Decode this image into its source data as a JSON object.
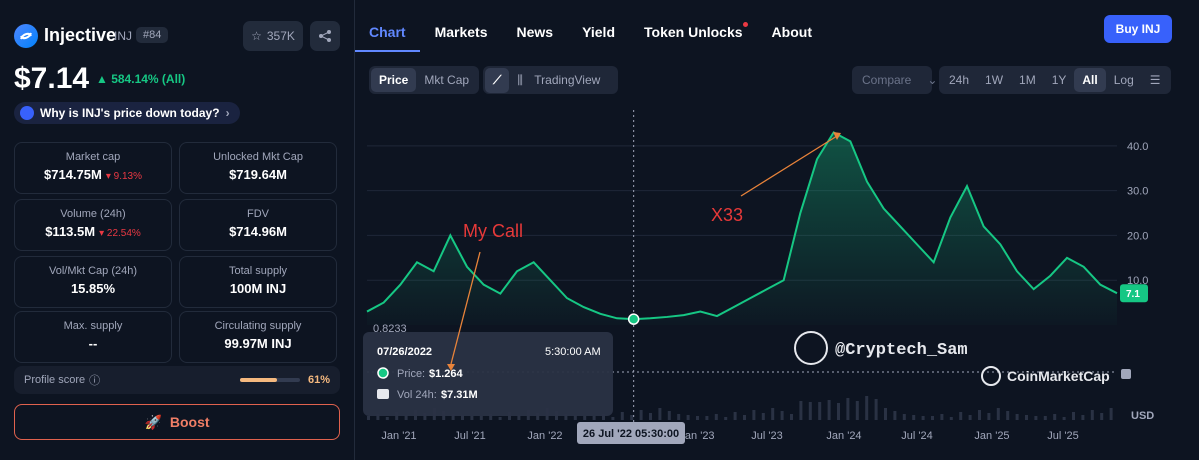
{
  "coin": {
    "name": "Injective",
    "symbol": "INJ",
    "rank": "#84",
    "watchlist_count": "357K",
    "price": "$7.14",
    "change": "▲ 584.14% (All)",
    "why_label": "Why is INJ's price down today?"
  },
  "stats": [
    {
      "label": "Market cap",
      "value": "$714.75M",
      "sub": "▾ 9.13%"
    },
    {
      "label": "Unlocked Mkt Cap",
      "value": "$719.64M",
      "sub": ""
    },
    {
      "label": "Volume (24h)",
      "value": "$113.5M",
      "sub": "▾ 22.54%"
    },
    {
      "label": "FDV",
      "value": "$714.96M",
      "sub": ""
    },
    {
      "label": "Vol/Mkt Cap (24h)",
      "value": "15.85%",
      "sub": ""
    },
    {
      "label": "Total supply",
      "value": "100M INJ",
      "sub": ""
    },
    {
      "label": "Max. supply",
      "value": "--",
      "sub": ""
    },
    {
      "label": "Circulating supply",
      "value": "99.97M INJ",
      "sub": ""
    }
  ],
  "profile": {
    "label": "Profile score",
    "value": "61%",
    "progress": 0.61
  },
  "boost_label": "Boost",
  "tabs": [
    "Chart",
    "Markets",
    "News",
    "Yield",
    "Token Unlocks",
    "About"
  ],
  "buy_label": "Buy INJ",
  "controls": {
    "price": "Price",
    "mktcap": "Mkt Cap",
    "tradingview": "TradingView",
    "compare": "Compare",
    "ranges": [
      "24h",
      "1W",
      "1M",
      "1Y",
      "All"
    ],
    "log": "Log"
  },
  "tooltip": {
    "date": "07/26/2022",
    "time": "5:30:00 AM",
    "price_label": "Price:",
    "price": "$1.264",
    "vol_label": "Vol 24h:",
    "vol": "$7.31M"
  },
  "annotations": {
    "my_call": "My Call",
    "x33": "X33",
    "watermark": "@Cryptech_Sam",
    "cmc": "CoinMarketCap"
  },
  "chart_data": {
    "type": "area",
    "x_ticks": [
      "Jan '21",
      "Jul '21",
      "Jan '22",
      "Jan '23",
      "Jul '23",
      "Jan '24",
      "Jul '24",
      "Jan '25",
      "Jul '25"
    ],
    "crosshair_label": "26 Jul '22 05:30:00",
    "y_ticks": [
      "40.0",
      "30.0",
      "20.0",
      "10.0"
    ],
    "y_unit": "USD",
    "low_label": "0.8233",
    "current_label": "7.1",
    "ylim": [
      0,
      48
    ],
    "series": [
      {
        "values": [
          3,
          5,
          9,
          14,
          12,
          20,
          13,
          9,
          7,
          12,
          14,
          10,
          6,
          4,
          2.5,
          1.5,
          1.3,
          1.5,
          1.8,
          2.2,
          3,
          2,
          4,
          6,
          8,
          10,
          25,
          37,
          43,
          41,
          32,
          26,
          22,
          18,
          14,
          24,
          31,
          22,
          18,
          12,
          8,
          11,
          15,
          13,
          9,
          7.1
        ]
      }
    ],
    "accent": "#16c784"
  }
}
